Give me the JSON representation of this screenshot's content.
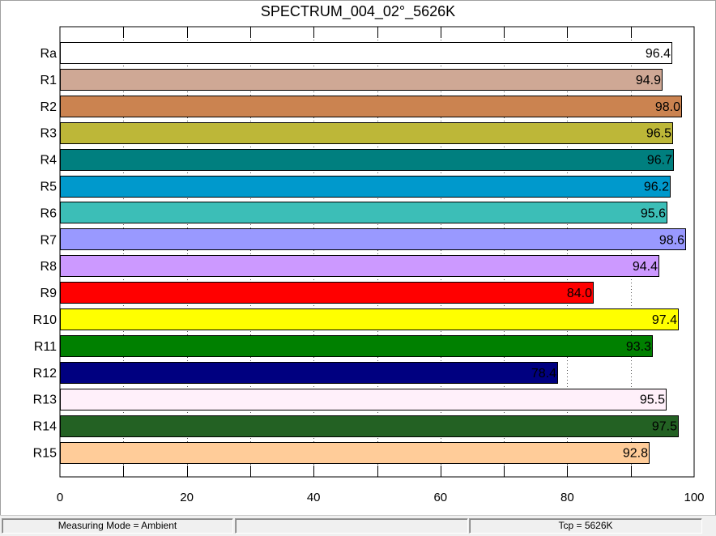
{
  "chart_data": {
    "type": "bar",
    "orientation": "horizontal",
    "title": "SPECTRUM_004_02°_5626K",
    "xlabel": "",
    "ylabel": "",
    "xlim": [
      0,
      100
    ],
    "x_ticks": [
      "0",
      "20",
      "40",
      "60",
      "80",
      "100"
    ],
    "grid": "vertical dotted",
    "categories": [
      "Ra",
      "R1",
      "R2",
      "R3",
      "R4",
      "R5",
      "R6",
      "R7",
      "R8",
      "R9",
      "R10",
      "R11",
      "R12",
      "R13",
      "R14",
      "R15"
    ],
    "values": [
      96.4,
      94.9,
      98.0,
      96.5,
      96.7,
      96.2,
      95.6,
      98.6,
      94.4,
      84.0,
      97.4,
      93.3,
      78.4,
      95.5,
      97.5,
      92.8
    ],
    "value_labels": [
      "96.4",
      "94.9",
      "98.0",
      "96.5",
      "96.7",
      "96.2",
      "95.6",
      "98.6",
      "94.4",
      "84.0",
      "97.4",
      "93.3",
      "78.4",
      "95.5",
      "97.5",
      "92.8"
    ],
    "colors": [
      "#ffffff",
      "#cfa895",
      "#cb8350",
      "#bdb738",
      "#007f7f",
      "#0099cc",
      "#3cbeb7",
      "#9999ff",
      "#cc99ff",
      "#ff0000",
      "#ffff00",
      "#008000",
      "#000080",
      "#fff0fa",
      "#236123",
      "#ffcc99"
    ]
  },
  "status_bar": {
    "mode": "Measuring Mode = Ambient",
    "middle": "",
    "tcp": "Tcp = 5626K"
  }
}
